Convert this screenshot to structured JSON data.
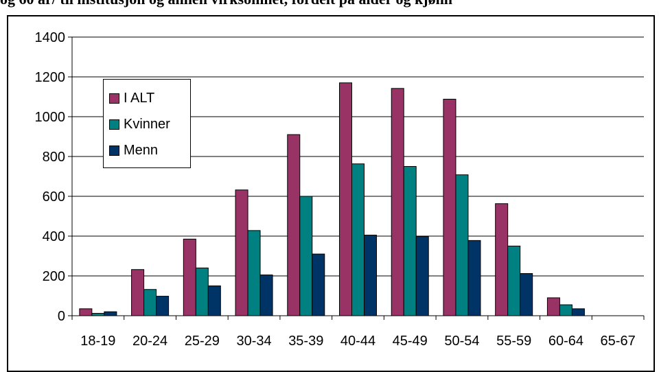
{
  "caption": "og 60 år/ til institusjon og annen virksomhet, fordelt på alder og kjønn",
  "chart_data": {
    "type": "bar",
    "categories": [
      "18-19",
      "20-24",
      "25-29",
      "30-34",
      "35-39",
      "40-44",
      "45-49",
      "50-54",
      "55-59",
      "60-64",
      "65-67"
    ],
    "series": [
      {
        "name": "I ALT",
        "color": "#993366",
        "values": [
          35,
          232,
          385,
          632,
          910,
          1170,
          1142,
          1088,
          563,
          90,
          0
        ]
      },
      {
        "name": "Kvinner",
        "color": "#008080",
        "values": [
          12,
          132,
          240,
          428,
          600,
          763,
          750,
          708,
          350,
          55,
          0
        ]
      },
      {
        "name": "Menn",
        "color": "#003366",
        "values": [
          20,
          98,
          150,
          205,
          310,
          405,
          398,
          378,
          212,
          35,
          0
        ]
      }
    ],
    "yticks": [
      0,
      200,
      400,
      600,
      800,
      1000,
      1200,
      1400
    ],
    "ylim": [
      0,
      1400
    ],
    "grid": true,
    "legend_position": "top-left"
  }
}
